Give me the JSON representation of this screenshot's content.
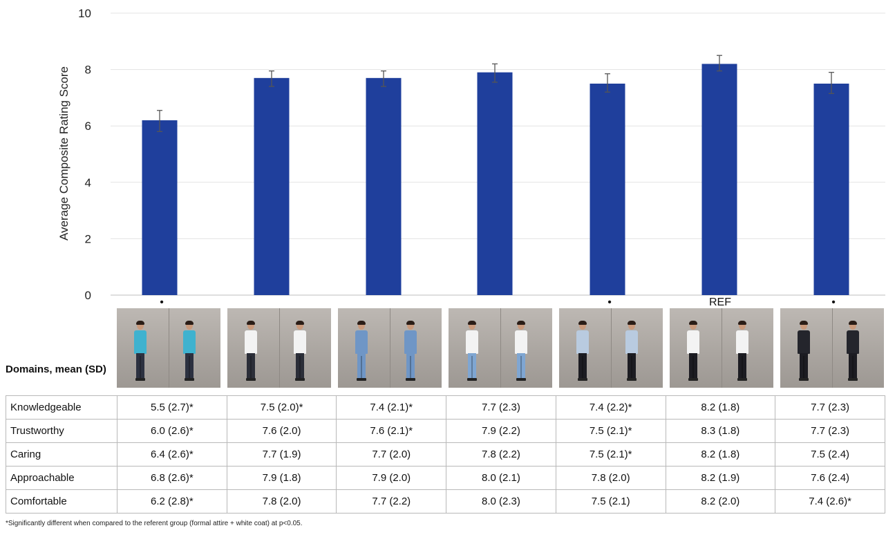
{
  "chart_data": {
    "type": "bar",
    "ylabel": "Average Composite Rating Score",
    "ylim": [
      0,
      10
    ],
    "yticks": [
      "0",
      "2",
      "4",
      "6",
      "8",
      "10"
    ],
    "grid": true,
    "bar_color": "#1f3f9c",
    "values": [
      6.2,
      7.7,
      7.7,
      7.9,
      7.5,
      8.2,
      7.5
    ],
    "error_low": [
      5.8,
      7.4,
      7.4,
      7.55,
      7.2,
      7.95,
      7.15
    ],
    "error_high": [
      6.55,
      7.95,
      7.95,
      8.2,
      7.85,
      8.5,
      7.9
    ],
    "markers": [
      "•",
      "",
      "",
      "",
      "•",
      "REF",
      "•"
    ]
  },
  "attire_photos": [
    {
      "top": "#3fb2cf",
      "bottom": "#2c3140"
    },
    {
      "top": "#f3f3f3",
      "bottom": "#2b2e38"
    },
    {
      "top": "#6f96c6",
      "bottom": "#6f96c6"
    },
    {
      "top": "#f3f3f3",
      "bottom": "#7fa6d2"
    },
    {
      "top": "#b9cbe0",
      "bottom": "#1c1c22"
    },
    {
      "top": "#f3f3f3",
      "bottom": "#1c1c22"
    },
    {
      "top": "#24252c",
      "bottom": "#1c1c22"
    }
  ],
  "table": {
    "title": "Domains, mean (SD)",
    "rows": [
      {
        "label": "Knowledgeable",
        "cells": [
          "5.5 (2.7)*",
          "7.5 (2.0)*",
          "7.4 (2.1)*",
          "7.7 (2.3)",
          "7.4 (2.2)*",
          "8.2 (1.8)",
          "7.7 (2.3)"
        ]
      },
      {
        "label": "Trustworthy",
        "cells": [
          "6.0 (2.6)*",
          "7.6 (2.0)",
          "7.6 (2.1)*",
          "7.9 (2.2)",
          "7.5 (2.1)*",
          "8.3 (1.8)",
          "7.7 (2.3)"
        ]
      },
      {
        "label": "Caring",
        "cells": [
          "6.4 (2.6)*",
          "7.7 (1.9)",
          "7.7 (2.0)",
          "7.8 (2.2)",
          "7.5 (2.1)*",
          "8.2 (1.8)",
          "7.5 (2.4)"
        ]
      },
      {
        "label": "Approachable",
        "cells": [
          "6.8 (2.6)*",
          "7.9 (1.8)",
          "7.9 (2.0)",
          "8.0 (2.1)",
          "7.8 (2.0)",
          "8.2 (1.9)",
          "7.6 (2.4)"
        ]
      },
      {
        "label": "Comfortable",
        "cells": [
          "6.2 (2.8)*",
          "7.8 (2.0)",
          "7.7 (2.2)",
          "8.0 (2.3)",
          "7.5 (2.1)",
          "8.2 (2.0)",
          "7.4 (2.6)*"
        ]
      }
    ]
  },
  "footnote": "*Significantly different when compared to the referent group (formal attire + white coat) at p<0.05."
}
